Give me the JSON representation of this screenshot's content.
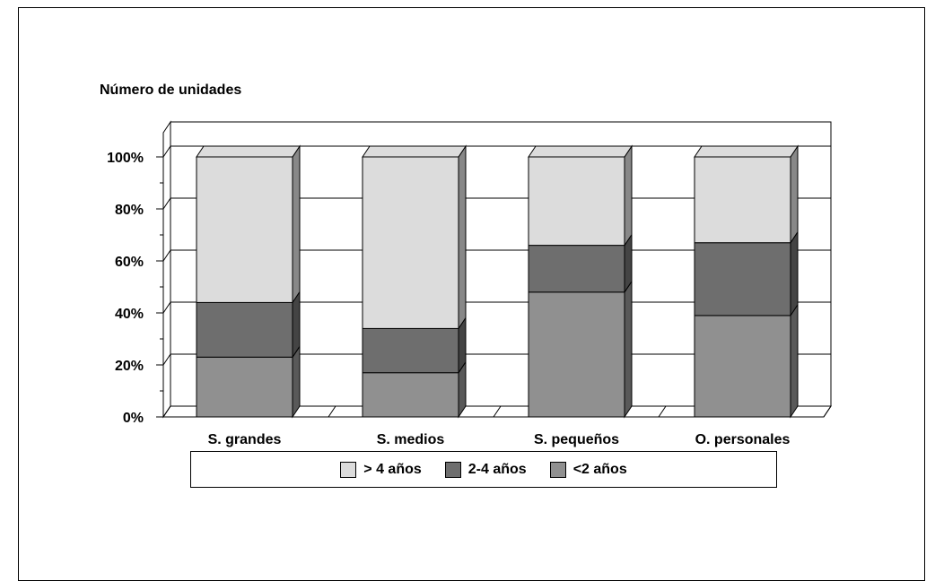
{
  "chart_data": {
    "type": "bar",
    "stacked": true,
    "normalized": true,
    "three_d": true,
    "title": "",
    "xlabel": "",
    "ylabel": "Número de unidades",
    "ylim": [
      0,
      100
    ],
    "yticks": [
      "0%",
      "20%",
      "40%",
      "60%",
      "80%",
      "100%"
    ],
    "grid": true,
    "legend_position": "bottom",
    "categories": [
      "S. grandes",
      "S. medios",
      "S. pequeños",
      "O. personales"
    ],
    "series": [
      {
        "name": "<2 años",
        "color": "#909090",
        "values": [
          23,
          17,
          48,
          39
        ]
      },
      {
        "name": "2-4 años",
        "color": "#6e6e6e",
        "values": [
          21,
          17,
          18,
          28
        ]
      },
      {
        "name": "> 4 años",
        "color": "#dcdcdc",
        "values": [
          56,
          66,
          34,
          33
        ]
      }
    ],
    "legend": [
      "> 4 años",
      "2-4 años",
      "<2 años"
    ]
  }
}
